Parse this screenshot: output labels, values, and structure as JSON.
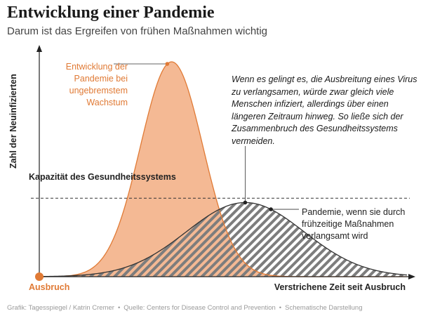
{
  "header": {
    "title": "Entwicklung einer Pandemie",
    "subtitle": "Darum ist das Ergreifen von frühen Maßnahmen wichtig"
  },
  "chart_data": {
    "type": "area",
    "title": "Entwicklung einer Pandemie",
    "subtitle": "Darum ist das Ergreifen von frühen Maßnahmen wichtig",
    "xlabel": "Verstrichene Zeit seit Ausbruch",
    "ylabel": "Zahl der Neuinfizierten",
    "x_start_label": "Ausbruch",
    "schematic": true,
    "series": [
      {
        "annotation": "Entwicklung der Pandemie bei ungebremstem Wachstum",
        "color": "#f4b994",
        "stroke": "#e07a35",
        "shape": "gaussian",
        "peak_x": 0.36,
        "peak_y": 1.0,
        "width": 0.085
      },
      {
        "annotation": "Pandemie, wenn sie durch frühzeitige Maßnahmen verlangsamt wird",
        "color": "#888888",
        "stroke": "#333333",
        "pattern": "diagonal-hatch",
        "shape": "gaussian",
        "peak_x": 0.56,
        "peak_y": 0.345,
        "width": 0.16
      }
    ],
    "capacity": {
      "label": "Kapazität des Gesundheitssystems",
      "y": 0.365,
      "style": "dashed"
    },
    "annotations": {
      "unchecked": "Entwicklung der Pandemie bei ungebremstem Wachstum",
      "slowed": "Pandemie, wenn sie durch frühzeitige Maßnahmen verlangsamt wird",
      "explanation": "Wenn es gelingt es, die Ausbreitung eines Virus zu verlangsamen, würde zwar gleich viele Menschen infiziert, allerdings über einen längeren Zeitraum hinweg. So ließe sich der Zusammenbruch des Gesundheitssystems vermeiden."
    },
    "xlim": [
      0,
      1
    ],
    "ylim": [
      0,
      1
    ],
    "grid": false
  },
  "footer": {
    "source_items": [
      "Grafik: Tagesspiegel / Katrin Cremer",
      "Quelle: Centers for Disease Control and Prevention",
      "Schematische Darstellung"
    ],
    "separator": "•"
  }
}
